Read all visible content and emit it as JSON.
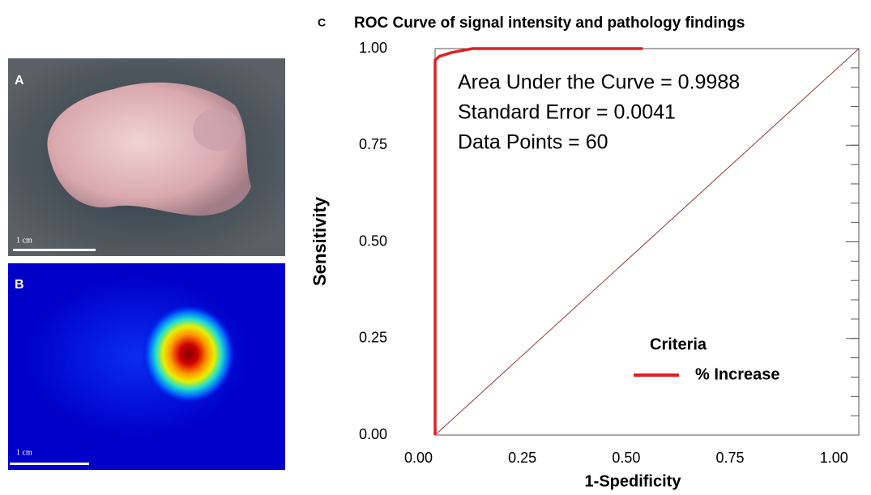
{
  "panels": {
    "a": {
      "label": "A",
      "scale": "1 cm"
    },
    "b": {
      "label": "B",
      "scale": "1 cm"
    }
  },
  "chart_data": {
    "type": "line",
    "panel_label": "C",
    "title": "ROC Curve of signal intensity and pathology findings",
    "x_label": "1-Spedificity",
    "y_label": "Sensitivity",
    "annotations": [
      "Area Under the Curve = 0.9988",
      "Standard Error = 0.0041",
      "Data Points = 60"
    ],
    "legend_title": "Criteria",
    "x": [
      0.04,
      0.04,
      0.05,
      0.08,
      0.13,
      0.54
    ],
    "series": [
      {
        "name": "% Increase",
        "color": "#e02020",
        "values": [
          0,
          0.97,
          0.98,
          0.99,
          1.0,
          1.0
        ]
      }
    ],
    "xlim": [
      0.04,
      1.06
    ],
    "ylim": [
      0,
      1
    ],
    "xticks": [
      {
        "value": 0,
        "label": "0.00"
      },
      0.25,
      {
        "value": 0.5,
        "label": "0.50"
      },
      0.75,
      {
        "value": 1,
        "label": "1.00"
      }
    ],
    "yticks": [
      {
        "value": 0,
        "label": "0.00"
      },
      0.25,
      {
        "value": 0.5,
        "label": "0.50"
      },
      0.75,
      {
        "value": 1,
        "label": "1.00"
      }
    ]
  }
}
